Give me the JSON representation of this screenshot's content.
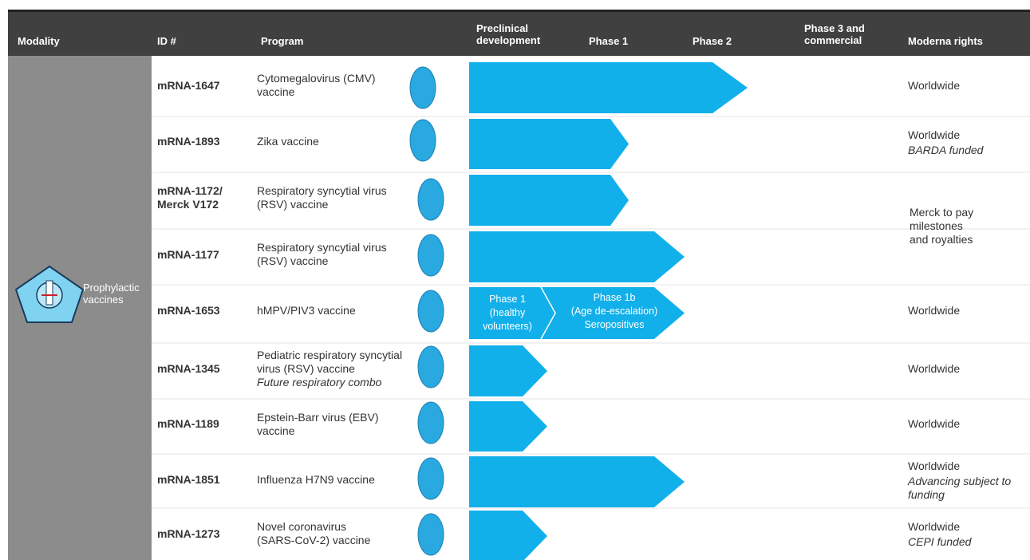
{
  "header": {
    "columns": [
      "Modality",
      "ID #",
      "Program",
      "Preclinical\ndevelopment",
      "Phase 1",
      "Phase 2",
      "Phase 3 and\ncommercial",
      "Moderna rights"
    ]
  },
  "modality": "Prophylactic\nvaccines",
  "rows": [
    {
      "id": "mRNA-1647",
      "program": "Cytomegalovirus  (CMV)\nvaccine",
      "rights": "Worldwide"
    },
    {
      "id": "mRNA-1893",
      "program": "Zika vaccine",
      "rights": "Worldwide",
      "rights_note": "BARDA funded"
    },
    {
      "id": "mRNA-1172/\nMerck V172",
      "program": "Respiratory syncytial  virus\n(RSV) vaccine",
      "rights": "Merck to pay\nmilestones\nand royalties"
    },
    {
      "id": "mRNA-1177",
      "program": "Respiratory syncytial  virus\n(RSV) vaccine"
    },
    {
      "id": "mRNA-1653",
      "program": "hMPV/PIV3   vaccine",
      "rights": "Worldwide",
      "stage_labels": [
        "Phase 1\n(healthy\nvolunteers)",
        "Phase 1b\n(Age de-escalation)\nSeropositives"
      ]
    },
    {
      "id": "mRNA-1345",
      "program": "Pediatric respiratory syncytial\nvirus (RSV) vaccine",
      "program_note": "Future respiratory combo",
      "rights": "Worldwide"
    },
    {
      "id": "mRNA-1189",
      "program": "Epstein-Barr virus (EBV)\nvaccine",
      "rights": "Worldwide"
    },
    {
      "id": "mRNA-1851",
      "program": "Influenza H7N9 vaccine",
      "rights": "Worldwide",
      "rights_note": "Advancing subject to\nfunding"
    },
    {
      "id": "mRNA-1273",
      "program": "Novel coronavirus\n(SARS-CoV-2) vaccine",
      "rights": "Worldwide",
      "rights_note": "CEPI funded"
    }
  ]
}
